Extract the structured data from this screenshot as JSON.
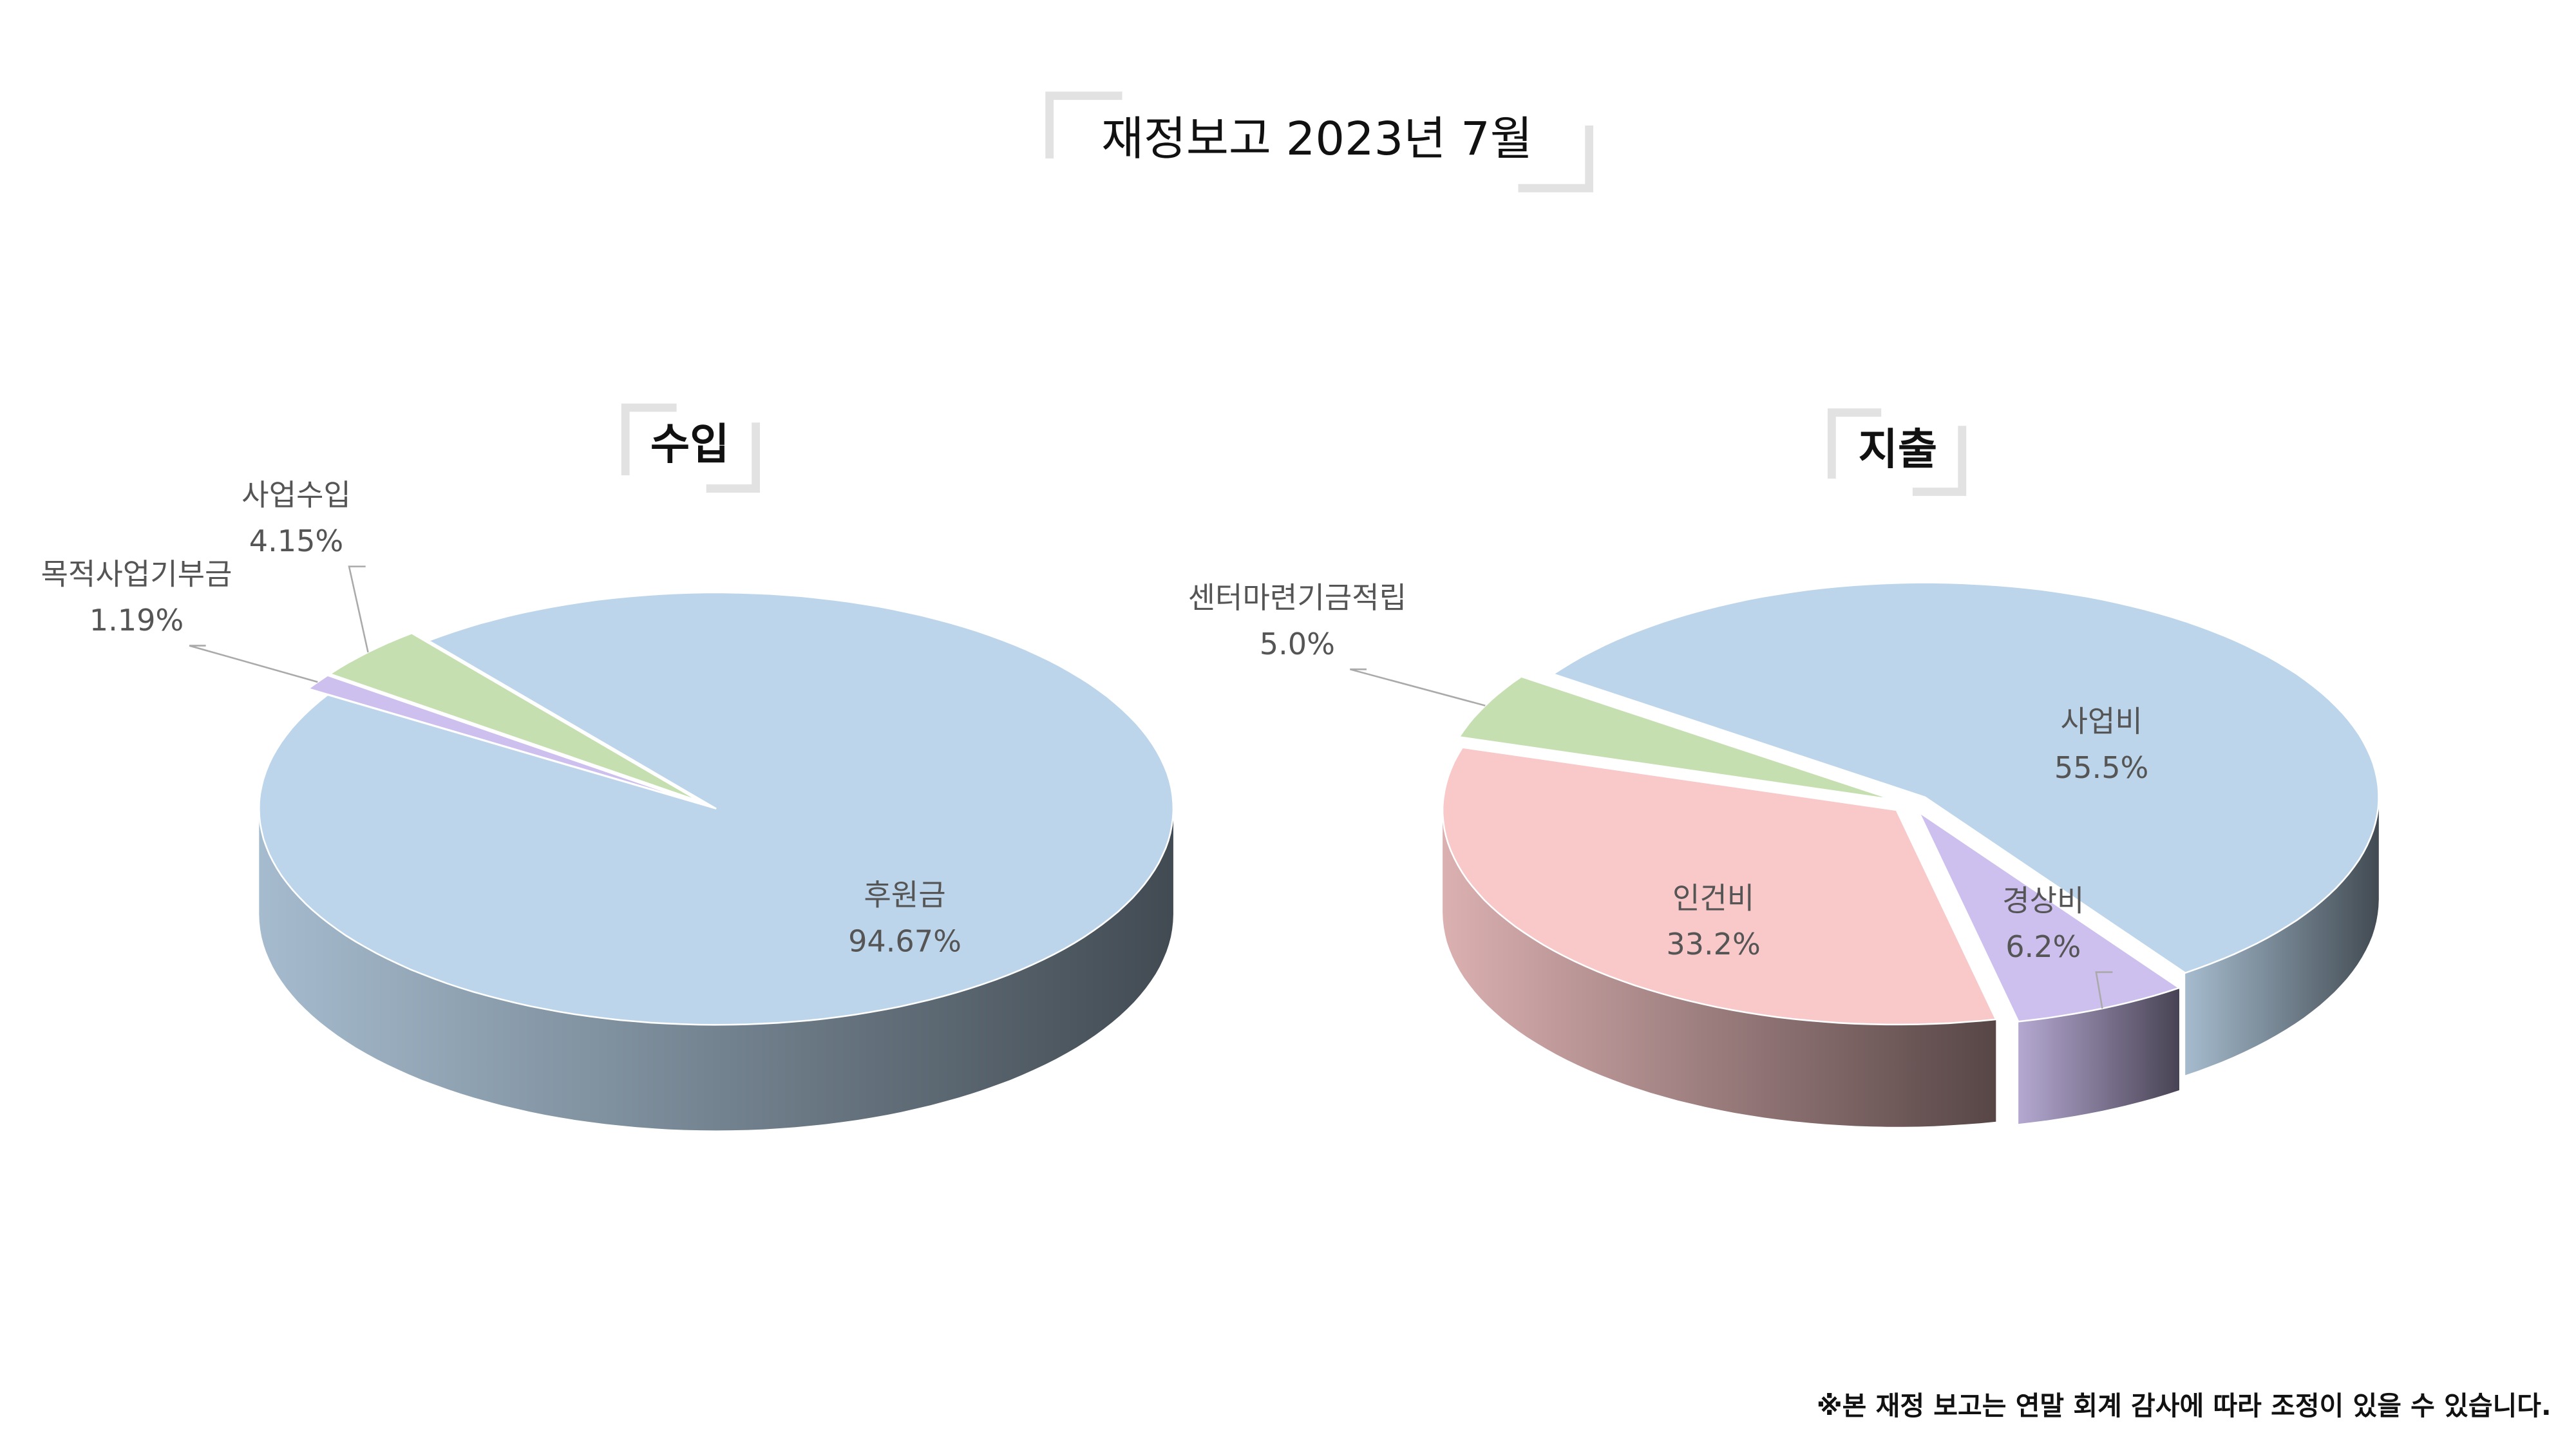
{
  "title": "재정보고 2023년 7월",
  "footnote": "※본 재정 보고는 연말 회계 감사에 따라 조정이 있을 수 있습니다.",
  "chart_data": [
    {
      "type": "pie",
      "title": "수입",
      "categories": [
        "후원금",
        "목적사업기부금",
        "사업수입"
      ],
      "values": [
        94.67,
        1.19,
        4.15
      ],
      "value_labels": [
        "94.67%",
        "1.19%",
        "4.15%"
      ],
      "colors": [
        "#bcd5ea",
        "#cdbfee",
        "#c5dfb0"
      ]
    },
    {
      "type": "pie",
      "title": "지출",
      "categories": [
        "사업비",
        "경상비",
        "인건비",
        "센터마련기금적립"
      ],
      "values": [
        55.5,
        6.2,
        33.2,
        5.0
      ],
      "value_labels": [
        "55.5%",
        "6.2%",
        "33.2%",
        "5.0%"
      ],
      "colors": [
        "#bcd5ea",
        "#cdbfee",
        "#f9c8c9",
        "#c5dfb0"
      ]
    }
  ]
}
